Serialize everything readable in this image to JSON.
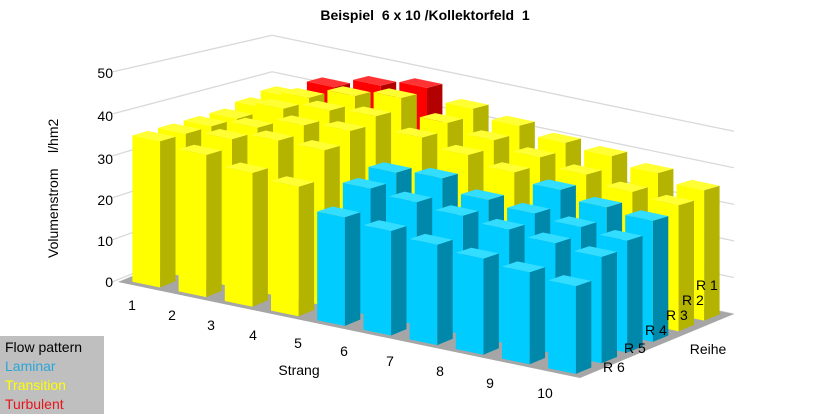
{
  "chart_data": {
    "type": "bar3d",
    "title": "Beispiel  6 x 10 /Kollektorfeld  1",
    "ylabel": "Volumenstrom    l/hm2",
    "xlabel": "Strang",
    "zlabel": "Reihe",
    "ylim": [
      0,
      50
    ],
    "yticks": [
      "0",
      "10",
      "20",
      "30",
      "40",
      "50"
    ],
    "categories": [
      "1",
      "2",
      "3",
      "4",
      "5",
      "6",
      "7",
      "8",
      "9",
      "10"
    ],
    "rows": [
      "R 1",
      "R 2",
      "R 3",
      "R 4",
      "R 5",
      "R 6"
    ],
    "grid": true,
    "colors": {
      "Laminar": "#00ccff",
      "Transition": "#ffff00",
      "Turbulent": "#ff0000"
    },
    "series": [
      {
        "name": "R 1",
        "values": [
          37,
          42,
          45,
          47,
          44,
          42,
          40,
          39,
          37,
          35
        ],
        "pattern": [
          "Transition",
          "Turbulent",
          "Turbulent",
          "Turbulent",
          "Transition",
          "Transition",
          "Transition",
          "Transition",
          "Transition",
          "Transition"
        ]
      },
      {
        "name": "R 2",
        "values": [
          36,
          41,
          44,
          46,
          42,
          40,
          38,
          36,
          34,
          33
        ],
        "pattern": [
          "Transition",
          "Transition",
          "Transition",
          "Transition",
          "Transition",
          "Transition",
          "Transition",
          "Transition",
          "Transition",
          "Transition"
        ]
      },
      {
        "name": "R 3",
        "values": [
          35,
          40,
          42,
          43,
          40,
          38,
          36,
          34,
          32,
          31
        ],
        "pattern": [
          "Transition",
          "Transition",
          "Transition",
          "Transition",
          "Transition",
          "Transition",
          "Transition",
          "Laminar",
          "Laminar",
          "Laminar"
        ]
      },
      {
        "name": "R 4",
        "values": [
          35,
          37,
          40,
          41,
          33,
          34,
          31,
          30,
          29,
          28
        ],
        "pattern": [
          "Transition",
          "Transition",
          "Transition",
          "Transition",
          "Laminar",
          "Laminar",
          "Laminar",
          "Laminar",
          "Laminar",
          "Laminar"
        ]
      },
      {
        "name": "R 5",
        "values": [
          35,
          36,
          38,
          38,
          31,
          30,
          29,
          28,
          27,
          26
        ],
        "pattern": [
          "Transition",
          "Transition",
          "Transition",
          "Transition",
          "Laminar",
          "Laminar",
          "Laminar",
          "Laminar",
          "Laminar",
          "Laminar"
        ]
      },
      {
        "name": "R 6",
        "values": [
          35,
          34,
          32,
          31,
          26,
          25,
          24,
          23,
          22,
          21
        ],
        "pattern": [
          "Transition",
          "Transition",
          "Transition",
          "Transition",
          "Laminar",
          "Laminar",
          "Laminar",
          "Laminar",
          "Laminar",
          "Laminar"
        ]
      }
    ],
    "legend": {
      "title": "Flow pattern",
      "placement": "bottom-left",
      "entries": [
        {
          "label": "Laminar",
          "color": "#2aa6d9"
        },
        {
          "label": "Transition",
          "color": "#ffff00"
        },
        {
          "label": "Turbulent",
          "color": "#e8141b"
        }
      ]
    }
  }
}
